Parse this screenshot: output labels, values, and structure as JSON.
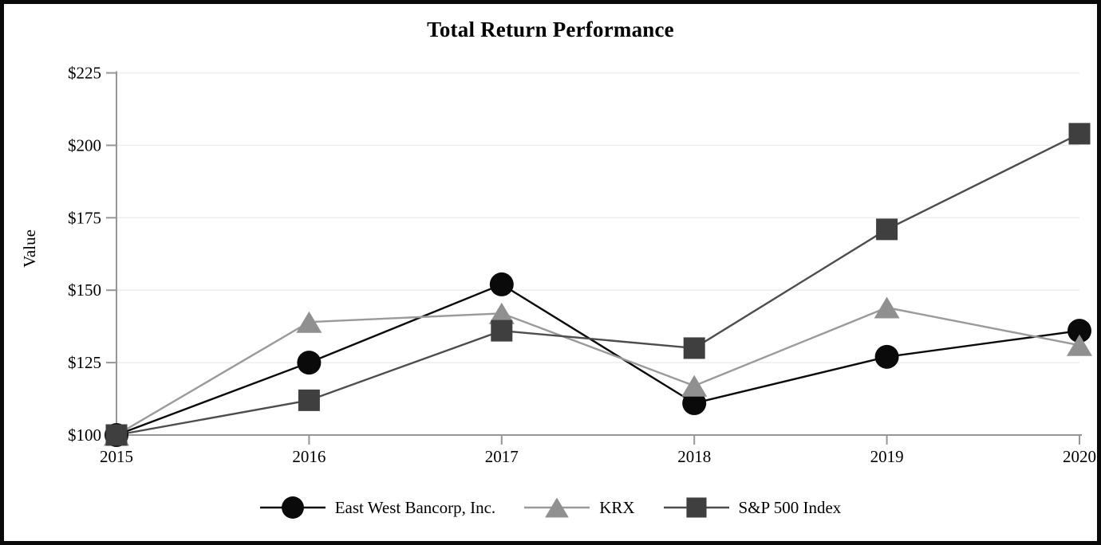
{
  "chart_data": {
    "type": "line",
    "title": "Total Return Performance",
    "ylabel": "Value",
    "x": [
      2015,
      2016,
      2017,
      2018,
      2019,
      2020
    ],
    "x_labels": [
      "2015",
      "2016",
      "2017",
      "2018",
      "2019",
      "2020"
    ],
    "y_ticks": [
      100,
      125,
      150,
      175,
      200,
      225
    ],
    "y_tick_labels": [
      "$100",
      "$125",
      "$150",
      "$175",
      "$200",
      "$225"
    ],
    "ylim": [
      100,
      225
    ],
    "grid": "horizontal-only",
    "legend_position": "bottom-center",
    "series": [
      {
        "name": "East West Bancorp, Inc.",
        "marker": "circle",
        "marker_color": "#0a0a0a",
        "line_color": "#0a0a0a",
        "values": [
          100,
          125,
          152,
          111,
          127,
          136
        ]
      },
      {
        "name": "KRX",
        "marker": "triangle",
        "marker_color": "#909090",
        "line_color": "#9a9a9a",
        "values": [
          100,
          139,
          142,
          117,
          144,
          131
        ]
      },
      {
        "name": "S&P 500 Index",
        "marker": "square",
        "marker_color": "#3f3f3f",
        "line_color": "#4d4d4d",
        "values": [
          100,
          112,
          136,
          130,
          171,
          204
        ]
      }
    ],
    "colors": {
      "background": "#ffffff",
      "frame_border": "#0a0a0a",
      "axis": "#969696",
      "grid": "#ededed",
      "text": "#000000"
    }
  }
}
